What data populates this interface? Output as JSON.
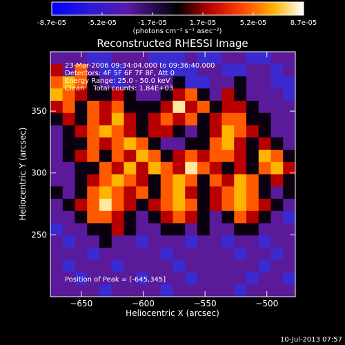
{
  "colorbar": {
    "tick_labels": [
      "-8.7e-05",
      "-5.2e-05",
      "-1.7e-05",
      "1.7e-05",
      "5.2e-05",
      "8.7e-05"
    ],
    "units_text": "(photons cm⁻² s⁻¹ asec⁻²)"
  },
  "annotations": {
    "time_range": "23-Mar-2006 09:34:04.000 to 09:36:40.000",
    "detectors": "Detectors: 4F 5F 6F 7F 8F, Att 0",
    "energy_range": "Energy Range: 25.0 - 50.0 keV",
    "clean_counts": "Clean    Total counts: 1.84E+03",
    "peak": "Position of Peak = [-645,345]"
  },
  "footer": {
    "date": "10-Jul-2013 07:57"
  },
  "chart_data": {
    "type": "heatmap",
    "title": "Reconstructed RHESSI Image",
    "xlabel": "Heliocentric X (arcsec)",
    "ylabel": "Heliocentric Y (arcsec)",
    "xlim": [
      -675,
      -477
    ],
    "ylim": [
      200,
      398
    ],
    "x_ticks": [
      -650,
      -600,
      -550,
      -500
    ],
    "y_ticks": [
      250,
      300,
      350
    ],
    "x_tick_labels": [
      "−650",
      "−600",
      "−550",
      "−500"
    ],
    "y_tick_labels": [
      "250",
      "300",
      "350"
    ],
    "colormap": [
      "#0000ff",
      "#3a00c0",
      "#6a0a9a",
      "#000000",
      "#c00000",
      "#ff5000",
      "#ffb000",
      "#ffffff"
    ],
    "zlim": [
      -8.7e-05,
      8.7e-05
    ],
    "peak_position": [
      -645,
      345
    ]
  }
}
